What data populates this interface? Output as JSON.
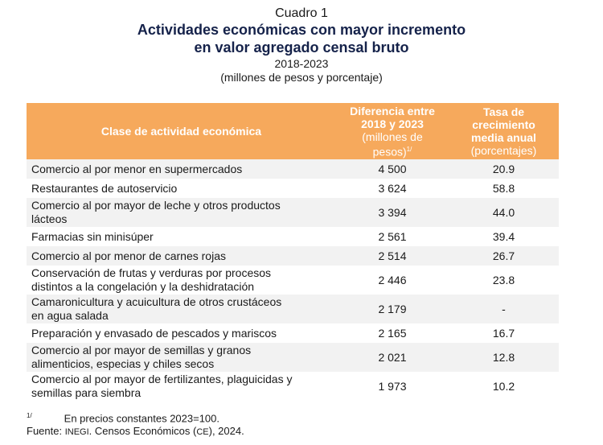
{
  "header": {
    "label": "Cuadro 1",
    "title_line1": "Actividades económicas con mayor incremento",
    "title_line2": "en valor agregado censal bruto",
    "years": "2018-2023",
    "units": "(millones de pesos y porcentaje)"
  },
  "table": {
    "col1": "Clase de actividad económica",
    "col2_line1": "Diferencia entre",
    "col2_line2": "2018 y 2023",
    "col2_line3": "(millones de",
    "col2_line4": "pesos)",
    "col2_sup": "1/",
    "col3_line1": "Tasa de",
    "col3_line2": "crecimiento",
    "col3_line3": "media anual",
    "col3_line4": "(porcentajes)",
    "rows": [
      {
        "a": "Comercio al por menor en supermercados",
        "b": "",
        "diff": "4 500",
        "rate": "20.9"
      },
      {
        "a": "Restaurantes de autoservicio",
        "b": "",
        "diff": "3 624",
        "rate": "58.8"
      },
      {
        "a": "Comercio al por mayor de leche y otros productos",
        "b": "lácteos",
        "diff": "3 394",
        "rate": "44.0"
      },
      {
        "a": "Farmacias sin minisúper",
        "b": "",
        "diff": "2 561",
        "rate": "39.4"
      },
      {
        "a": "Comercio al por menor de carnes rojas",
        "b": "",
        "diff": "2 514",
        "rate": "26.7"
      },
      {
        "a": "Conservación de frutas y verduras por procesos",
        "b": "distintos a la congelación y la deshidratación",
        "diff": "2 446",
        "rate": "23.8"
      },
      {
        "a": "Camaronicultura y acuicultura de otros crustáceos",
        "b": "en agua salada",
        "diff": "2 179",
        "rate": "-"
      },
      {
        "a": "Preparación y envasado de pescados y mariscos",
        "b": "",
        "diff": "2 165",
        "rate": "16.7"
      },
      {
        "a": "Comercio al por mayor de semillas y granos",
        "b": "alimenticios, especias y chiles secos",
        "diff": "2 021",
        "rate": "12.8"
      },
      {
        "a": "Comercio al por mayor de fertilizantes, plaguicidas y",
        "b": "semillas para siembra",
        "diff": "1 973",
        "rate": "10.2"
      }
    ]
  },
  "notes": {
    "sup": "1/",
    "note1": "En precios constantes 2023=100.",
    "source_prefix": "Fuente: ",
    "inegi": "INEGI",
    "source_mid": ". Censos Económicos (",
    "ce": "CE",
    "source_end": "), 2024."
  }
}
